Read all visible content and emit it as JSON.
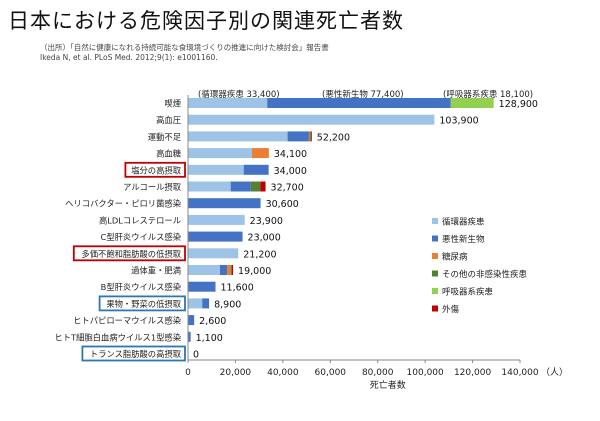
{
  "page": {
    "title": "日本における危険因子別の関連死亡者数",
    "source_line1": "（出所）「自然に健康になれる持続可能な食環境づくりの推進に向けた検討会」報告書",
    "source_line2": "Ikeda N, et al. PLoS Med. 2012;9(1): e1001160."
  },
  "chart_data": {
    "type": "bar",
    "orientation": "horizontal",
    "stacked": true,
    "xlabel": "死亡者数",
    "x_unit": "（人）",
    "xlim": [
      0,
      140000
    ],
    "xticks": [
      0,
      20000,
      40000,
      60000,
      80000,
      100000,
      120000,
      140000
    ],
    "xtick_labels": [
      "0",
      "20,000",
      "40,000",
      "60,000",
      "80,000",
      "100,000",
      "120,000",
      "140,000"
    ],
    "grid": false,
    "legend_position": "right",
    "categories": [
      "喫煙",
      "高血圧",
      "運動不足",
      "高血糖",
      "塩分の高摂取",
      "アルコール摂取",
      "ヘリコバクター・ピロリ菌感染",
      "高LDLコレステロール",
      "C型肝炎ウイルス感染",
      "多価不飽和脂肪酸の低摂取",
      "過体重・肥満",
      "B型肝炎ウイルス感染",
      "果物・野菜の低摂取",
      "ヒトパピローマウイルス感染",
      "ヒトT細胞白血病ウイルス1型感染",
      "トランス脂肪酸の高摂取"
    ],
    "highlighted": [
      false,
      false,
      false,
      false,
      true,
      false,
      false,
      false,
      false,
      true,
      false,
      false,
      true,
      false,
      false,
      true
    ],
    "highlight_color": [
      "#c00000",
      "#c00000",
      "#2e75b6",
      "#2e75b6"
    ],
    "total_labels": [
      "128,900",
      "103,900",
      "52,200",
      "34,100",
      "34,000",
      "32,700",
      "30,600",
      "23,900",
      "23,000",
      "21,200",
      "19,000",
      "11,600",
      "8,900",
      "2,600",
      "1,100",
      "0"
    ],
    "series": [
      {
        "name": "循環器疾患",
        "color": "#9dc3e6",
        "values": [
          33400,
          103900,
          42000,
          27000,
          23500,
          18000,
          0,
          23900,
          0,
          21200,
          13500,
          0,
          6000,
          0,
          0,
          0
        ]
      },
      {
        "name": "悪性新生物",
        "color": "#4472c4",
        "values": [
          77400,
          0,
          9000,
          0,
          10500,
          8500,
          30600,
          0,
          23000,
          0,
          3000,
          11600,
          2900,
          2600,
          1100,
          0
        ]
      },
      {
        "name": "糖尿病",
        "color": "#ed7d31",
        "values": [
          0,
          0,
          300,
          7100,
          0,
          0,
          0,
          0,
          0,
          0,
          1500,
          0,
          0,
          0,
          0,
          0
        ]
      },
      {
        "name": "その他の非感染性疾患",
        "color": "#548235",
        "values": [
          0,
          0,
          500,
          0,
          0,
          4000,
          0,
          0,
          0,
          0,
          500,
          0,
          0,
          0,
          0,
          0
        ]
      },
      {
        "name": "呼吸器系疾患",
        "color": "#92d050",
        "values": [
          18100,
          0,
          0,
          0,
          0,
          0,
          0,
          0,
          0,
          0,
          0,
          0,
          0,
          0,
          0,
          0
        ]
      },
      {
        "name": "外傷",
        "color": "#c00000",
        "values": [
          0,
          0,
          400,
          0,
          0,
          2200,
          0,
          0,
          0,
          0,
          500,
          0,
          0,
          0,
          0,
          0
        ]
      }
    ],
    "annotations": [
      "(循環器疾患 33,400)",
      "(悪性新生物 77,400)",
      "(呼吸器系疾患 18,100)"
    ]
  }
}
